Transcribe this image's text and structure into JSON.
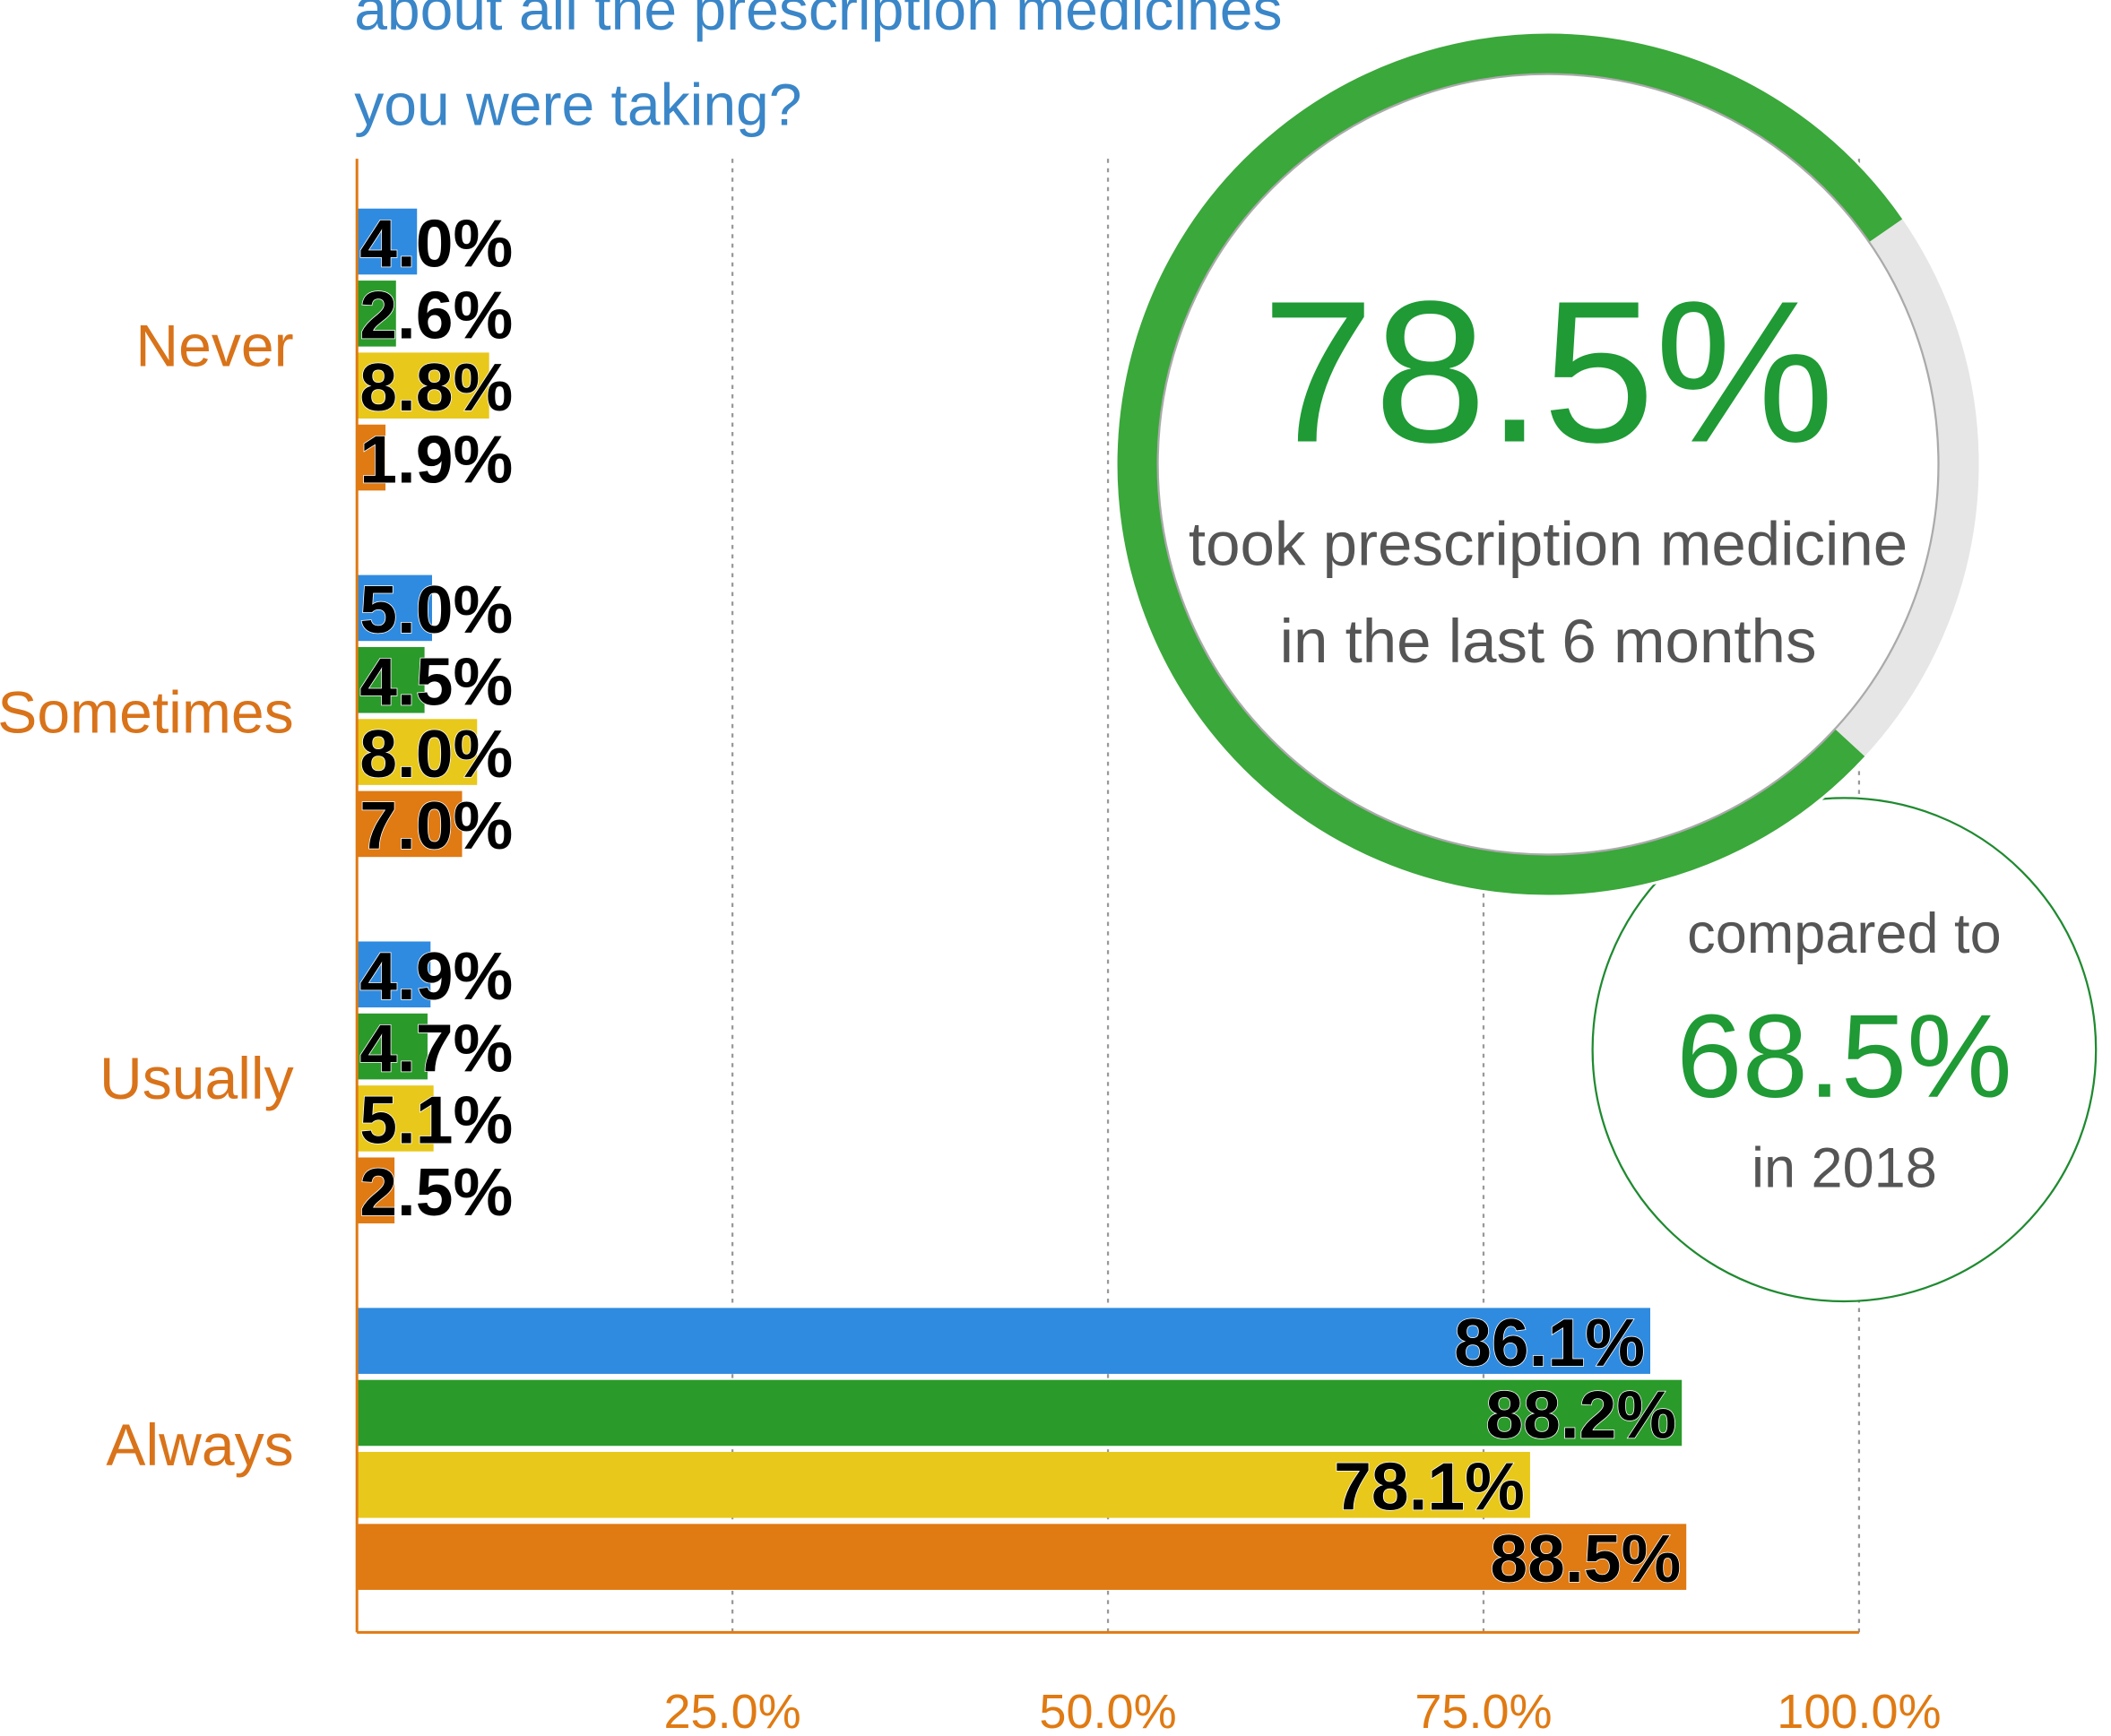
{
  "chart_data": {
    "type": "hbar",
    "title": [
      "about all the prescription medicines",
      "you were taking?"
    ],
    "categories": [
      "Never",
      "Sometimes",
      "Usually",
      "Always"
    ],
    "series": [
      {
        "color": "#2f8be0",
        "values": [
          4.0,
          5.0,
          4.9,
          86.1
        ],
        "value_labels": [
          "4.0%",
          "5.0%",
          "4.9%",
          "86.1%"
        ]
      },
      {
        "color": "#2a9a2a",
        "values": [
          2.6,
          4.5,
          4.7,
          88.2
        ],
        "value_labels": [
          "2.6%",
          "4.5%",
          "4.7%",
          "88.2%"
        ]
      },
      {
        "color": "#e8c81a",
        "values": [
          8.8,
          8.0,
          5.1,
          78.1
        ],
        "value_labels": [
          "8.8%",
          "8.0%",
          "5.1%",
          "78.1%"
        ]
      },
      {
        "color": "#e07a12",
        "values": [
          1.9,
          7.0,
          2.5,
          88.5
        ],
        "value_labels": [
          "1.9%",
          "7.0%",
          "2.5%",
          "88.5%"
        ]
      }
    ],
    "xlim": [
      0,
      100
    ],
    "xticks": [
      {
        "value": 25,
        "label": "25.0%"
      },
      {
        "value": 50,
        "label": "50.0%"
      },
      {
        "value": 75,
        "label": "75.0%"
      },
      {
        "value": 100,
        "label": "100.0%"
      }
    ],
    "grid": true
  },
  "callout": {
    "value": 78.5,
    "label": "78.5%",
    "color": "#1f9a35",
    "text": [
      "took prescription medicine",
      "in the last 6 months"
    ],
    "compare": {
      "text": "compared to",
      "label": "68.5%",
      "year_text": "in 2018"
    }
  }
}
